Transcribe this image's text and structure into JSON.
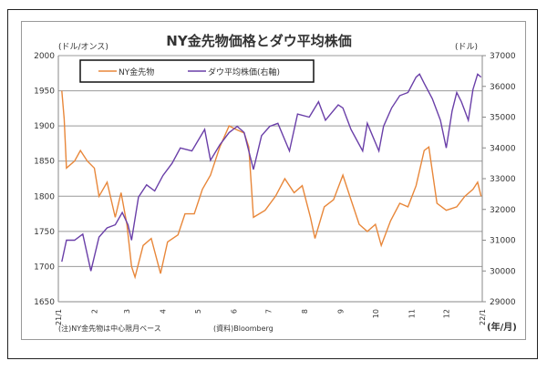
{
  "chart_data": {
    "type": "line",
    "title": "NY金先物価格とダウ平均株価",
    "ylabel_left": "(ドル/オンス)",
    "ylabel_right": "(ドル)",
    "xlabel": "(年/月)",
    "ylim_left": [
      1650,
      2000
    ],
    "ylim_right": [
      29000,
      37000
    ],
    "yticks_left": [
      "1650",
      "1700",
      "1750",
      "1800",
      "1850",
      "1900",
      "1950",
      "2000"
    ],
    "yticks_right": [
      "29000",
      "30000",
      "31000",
      "32000",
      "33000",
      "34000",
      "35000",
      "36000",
      "37000"
    ],
    "xticks": [
      {
        "label": "21/1",
        "date": "2021-01-01"
      },
      {
        "label": "2",
        "date": "2021-02-01"
      },
      {
        "label": "3",
        "date": "2021-03-01"
      },
      {
        "label": "4",
        "date": "2021-04-01"
      },
      {
        "label": "5",
        "date": "2021-05-01"
      },
      {
        "label": "6",
        "date": "2021-06-01"
      },
      {
        "label": "7",
        "date": "2021-07-01"
      },
      {
        "label": "8",
        "date": "2021-08-01"
      },
      {
        "label": "9",
        "date": "2021-09-01"
      },
      {
        "label": "10",
        "date": "2021-10-01"
      },
      {
        "label": "11",
        "date": "2021-11-01"
      },
      {
        "label": "12",
        "date": "2021-12-01"
      },
      {
        "label": "22/1",
        "date": "2022-01-01"
      }
    ],
    "xlim": [
      "2021-01-01",
      "2022-01-01"
    ],
    "grid": true,
    "legend": "top-left",
    "series": [
      {
        "name": "NY金先物",
        "axis": "left",
        "color": "#e8873a",
        "points": [
          [
            "2021-01-04",
            1950
          ],
          [
            "2021-01-06",
            1910
          ],
          [
            "2021-01-08",
            1840
          ],
          [
            "2021-01-15",
            1850
          ],
          [
            "2021-01-20",
            1865
          ],
          [
            "2021-01-26",
            1850
          ],
          [
            "2021-02-01",
            1840
          ],
          [
            "2021-02-05",
            1800
          ],
          [
            "2021-02-12",
            1820
          ],
          [
            "2021-02-19",
            1770
          ],
          [
            "2021-02-24",
            1805
          ],
          [
            "2021-03-01",
            1760
          ],
          [
            "2021-03-05",
            1700
          ],
          [
            "2021-03-08",
            1685
          ],
          [
            "2021-03-15",
            1730
          ],
          [
            "2021-03-22",
            1740
          ],
          [
            "2021-03-30",
            1690
          ],
          [
            "2021-04-05",
            1735
          ],
          [
            "2021-04-14",
            1745
          ],
          [
            "2021-04-20",
            1775
          ],
          [
            "2021-04-28",
            1775
          ],
          [
            "2021-05-05",
            1810
          ],
          [
            "2021-05-12",
            1830
          ],
          [
            "2021-05-20",
            1870
          ],
          [
            "2021-05-28",
            1900
          ],
          [
            "2021-06-03",
            1895
          ],
          [
            "2021-06-10",
            1890
          ],
          [
            "2021-06-14",
            1870
          ],
          [
            "2021-06-18",
            1770
          ],
          [
            "2021-06-28",
            1780
          ],
          [
            "2021-07-07",
            1800
          ],
          [
            "2021-07-15",
            1825
          ],
          [
            "2021-07-23",
            1805
          ],
          [
            "2021-07-30",
            1815
          ],
          [
            "2021-08-06",
            1770
          ],
          [
            "2021-08-10",
            1740
          ],
          [
            "2021-08-18",
            1785
          ],
          [
            "2021-08-26",
            1795
          ],
          [
            "2021-09-03",
            1830
          ],
          [
            "2021-09-10",
            1795
          ],
          [
            "2021-09-17",
            1760
          ],
          [
            "2021-09-24",
            1750
          ],
          [
            "2021-10-01",
            1760
          ],
          [
            "2021-10-06",
            1730
          ],
          [
            "2021-10-14",
            1765
          ],
          [
            "2021-10-22",
            1790
          ],
          [
            "2021-10-29",
            1785
          ],
          [
            "2021-11-05",
            1815
          ],
          [
            "2021-11-12",
            1865
          ],
          [
            "2021-11-16",
            1870
          ],
          [
            "2021-11-23",
            1790
          ],
          [
            "2021-12-01",
            1780
          ],
          [
            "2021-12-10",
            1785
          ],
          [
            "2021-12-17",
            1800
          ],
          [
            "2021-12-24",
            1810
          ],
          [
            "2021-12-28",
            1820
          ],
          [
            "2021-12-31",
            1800
          ]
        ]
      },
      {
        "name": "ダウ平均株価(右軸)",
        "axis": "right",
        "color": "#6a3fa8",
        "points": [
          [
            "2021-01-04",
            30300
          ],
          [
            "2021-01-08",
            31000
          ],
          [
            "2021-01-15",
            31000
          ],
          [
            "2021-01-22",
            31200
          ],
          [
            "2021-01-29",
            30000
          ],
          [
            "2021-02-05",
            31100
          ],
          [
            "2021-02-12",
            31400
          ],
          [
            "2021-02-19",
            31500
          ],
          [
            "2021-02-25",
            31900
          ],
          [
            "2021-03-02",
            31500
          ],
          [
            "2021-03-05",
            31000
          ],
          [
            "2021-03-11",
            32400
          ],
          [
            "2021-03-18",
            32800
          ],
          [
            "2021-03-25",
            32600
          ],
          [
            "2021-04-01",
            33100
          ],
          [
            "2021-04-09",
            33500
          ],
          [
            "2021-04-16",
            34000
          ],
          [
            "2021-04-26",
            33900
          ],
          [
            "2021-05-07",
            34600
          ],
          [
            "2021-05-12",
            33600
          ],
          [
            "2021-05-20",
            34100
          ],
          [
            "2021-05-28",
            34500
          ],
          [
            "2021-06-04",
            34700
          ],
          [
            "2021-06-10",
            34500
          ],
          [
            "2021-06-18",
            33300
          ],
          [
            "2021-06-25",
            34400
          ],
          [
            "2021-07-02",
            34700
          ],
          [
            "2021-07-09",
            34800
          ],
          [
            "2021-07-19",
            33900
          ],
          [
            "2021-07-26",
            35100
          ],
          [
            "2021-08-05",
            35000
          ],
          [
            "2021-08-13",
            35500
          ],
          [
            "2021-08-19",
            34900
          ],
          [
            "2021-08-30",
            35400
          ],
          [
            "2021-09-03",
            35300
          ],
          [
            "2021-09-10",
            34600
          ],
          [
            "2021-09-20",
            33900
          ],
          [
            "2021-09-24",
            34800
          ],
          [
            "2021-10-04",
            33900
          ],
          [
            "2021-10-08",
            34700
          ],
          [
            "2021-10-15",
            35300
          ],
          [
            "2021-10-22",
            35700
          ],
          [
            "2021-10-29",
            35800
          ],
          [
            "2021-11-05",
            36300
          ],
          [
            "2021-11-08",
            36400
          ],
          [
            "2021-11-12",
            36100
          ],
          [
            "2021-11-19",
            35600
          ],
          [
            "2021-11-26",
            34900
          ],
          [
            "2021-12-01",
            34000
          ],
          [
            "2021-12-06",
            35200
          ],
          [
            "2021-12-10",
            35800
          ],
          [
            "2021-12-14",
            35500
          ],
          [
            "2021-12-20",
            34900
          ],
          [
            "2021-12-24",
            35900
          ],
          [
            "2021-12-28",
            36400
          ],
          [
            "2021-12-31",
            36300
          ]
        ]
      }
    ]
  },
  "footnote": "(注)NY金先物は中心限月ベース",
  "source": "(資料)Bloomberg"
}
